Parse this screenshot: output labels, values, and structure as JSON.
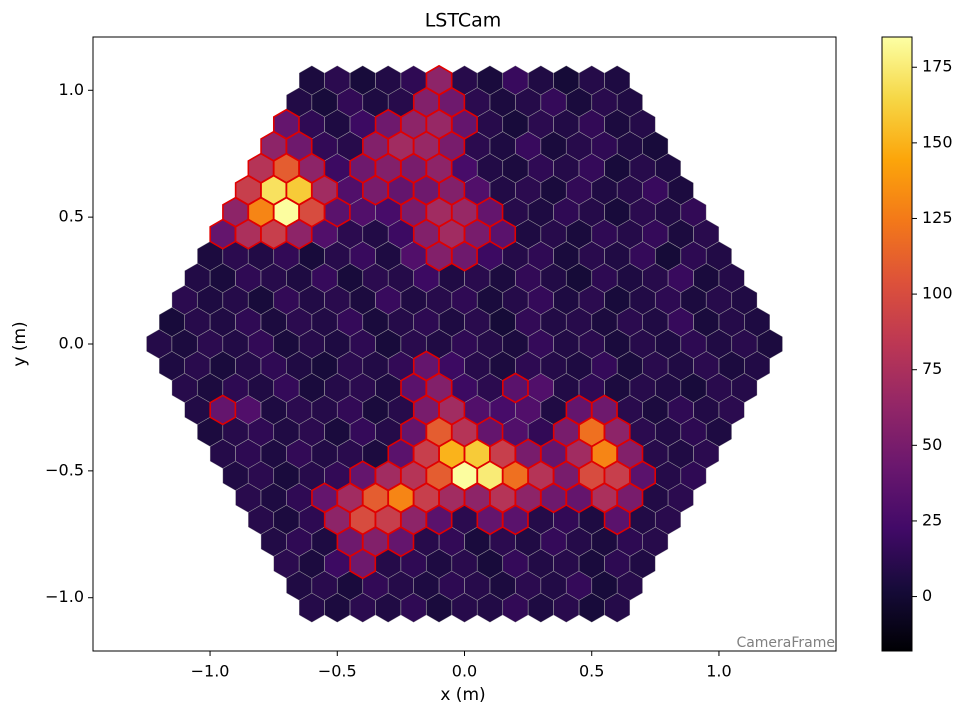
{
  "chart_data": {
    "type": "camera",
    "title": "LSTCam",
    "xlabel": "x  (m)",
    "ylabel": "y  (m)",
    "annotation": "CameraFrame",
    "colormap": "inferno",
    "clim": [
      -18,
      185
    ],
    "cticks": [
      0,
      25,
      50,
      75,
      100,
      125,
      150,
      175
    ],
    "highlight_color": "#e00000",
    "highlight_above": 30,
    "xlim": [
      -1.46,
      1.46
    ],
    "ylim": [
      -1.21,
      1.21
    ],
    "xticks": [
      {
        "value": -1,
        "label": "−1.0"
      },
      {
        "value": -0.5,
        "label": "−0.5"
      },
      {
        "value": 0,
        "label": "0.0"
      },
      0.5,
      {
        "value": 1,
        "label": "1.0"
      }
    ],
    "yticks": [
      {
        "value": -1,
        "label": "−1.0"
      },
      {
        "value": -0.5,
        "label": "−0.5"
      },
      {
        "value": 0,
        "label": "0.0"
      },
      0.5,
      {
        "value": 1,
        "label": "1.0"
      }
    ],
    "values": [
      [
        5,
        12,
        3,
        8,
        14,
        60,
        10,
        4,
        18,
        7,
        2,
        9,
        6
      ],
      [
        8,
        3,
        15,
        6,
        10,
        55,
        45,
        12,
        5,
        9,
        16,
        4,
        11,
        7
      ],
      [
        40,
        14,
        6,
        20,
        45,
        60,
        65,
        40,
        10,
        3,
        12,
        8,
        15,
        5,
        9
      ],
      [
        60,
        45,
        15,
        10,
        55,
        70,
        65,
        50,
        12,
        6,
        18,
        4,
        10,
        14,
        7,
        3
      ],
      [
        80,
        110,
        60,
        20,
        45,
        55,
        50,
        60,
        25,
        8,
        5,
        14,
        9,
        16,
        3,
        10,
        6
      ],
      [
        90,
        170,
        160,
        70,
        30,
        50,
        40,
        45,
        55,
        30,
        8,
        12,
        4,
        15,
        7,
        10,
        18,
        5
      ],
      [
        60,
        130,
        184,
        100,
        35,
        30,
        25,
        50,
        70,
        65,
        40,
        10,
        6,
        14,
        9,
        3,
        12,
        8,
        15
      ],
      [
        40,
        75,
        90,
        60,
        30,
        12,
        8,
        20,
        55,
        70,
        50,
        35,
        6,
        10,
        4,
        14,
        9,
        16,
        5,
        11
      ],
      [
        5,
        12,
        8,
        15,
        3,
        10,
        18,
        6,
        30,
        55,
        45,
        20,
        9,
        14,
        4,
        11,
        7,
        16,
        2,
        13,
        8
      ],
      [
        8,
        4,
        14,
        10,
        6,
        17,
        3,
        12,
        9,
        20,
        7,
        11,
        5,
        15,
        8,
        2,
        13,
        6,
        10,
        18,
        4,
        9
      ],
      [
        12,
        6,
        9,
        3,
        15,
        8,
        11,
        5,
        18,
        7,
        10,
        14,
        4,
        9,
        16,
        6,
        12,
        3,
        8,
        13,
        5,
        10,
        7
      ],
      [
        3,
        10,
        7,
        14,
        5,
        12,
        8,
        16,
        4,
        9,
        13,
        6,
        11,
        2,
        15,
        8,
        10,
        5,
        12,
        7,
        17,
        4,
        9,
        6
      ],
      [
        9,
        5,
        12,
        8,
        15,
        4,
        10,
        6,
        13,
        3,
        11,
        7,
        14,
        9,
        5,
        16,
        8,
        12,
        4,
        10,
        6,
        13,
        7,
        11,
        5
      ],
      [
        6,
        11,
        4,
        9,
        14,
        7,
        3,
        12,
        8,
        15,
        40,
        20,
        10,
        5,
        13,
        9,
        6,
        16,
        4,
        11,
        7,
        12,
        5,
        8
      ],
      [
        10,
        5,
        13,
        7,
        16,
        4,
        9,
        12,
        6,
        35,
        55,
        20,
        12,
        35,
        30,
        8,
        14,
        5,
        10,
        7,
        3,
        11,
        9
      ],
      [
        8,
        40,
        30,
        6,
        12,
        9,
        15,
        4,
        10,
        50,
        70,
        30,
        25,
        30,
        7,
        40,
        45,
        11,
        5,
        14,
        8,
        12
      ],
      [
        5,
        10,
        14,
        7,
        12,
        4,
        16,
        9,
        40,
        110,
        80,
        40,
        30,
        15,
        50,
        120,
        60,
        12,
        8,
        13,
        6
      ],
      [
        9,
        13,
        6,
        15,
        8,
        11,
        5,
        35,
        90,
        150,
        160,
        90,
        50,
        40,
        70,
        130,
        55,
        10,
        7,
        12
      ],
      [
        7,
        12,
        4,
        10,
        15,
        40,
        70,
        80,
        110,
        184,
        175,
        120,
        80,
        50,
        100,
        90,
        35,
        9,
        14
      ],
      [
        11,
        6,
        14,
        40,
        70,
        110,
        130,
        90,
        70,
        60,
        80,
        60,
        45,
        40,
        75,
        50,
        8,
        12
      ],
      [
        10,
        5,
        13,
        60,
        100,
        90,
        60,
        35,
        12,
        40,
        35,
        9,
        15,
        6,
        35,
        8,
        11
      ],
      [
        8,
        14,
        6,
        45,
        55,
        40,
        10,
        15,
        4,
        12,
        7,
        16,
        9,
        5,
        13,
        10
      ],
      [
        12,
        5,
        20,
        45,
        9,
        14,
        6,
        11,
        3,
        16,
        8,
        10,
        4,
        13,
        7
      ],
      [
        7,
        11,
        4,
        15,
        9,
        6,
        13,
        10,
        5,
        12,
        8,
        16,
        3,
        10
      ],
      [
        9,
        5,
        12,
        7,
        14,
        4,
        10,
        8,
        15,
        6,
        11,
        3,
        9
      ]
    ]
  }
}
